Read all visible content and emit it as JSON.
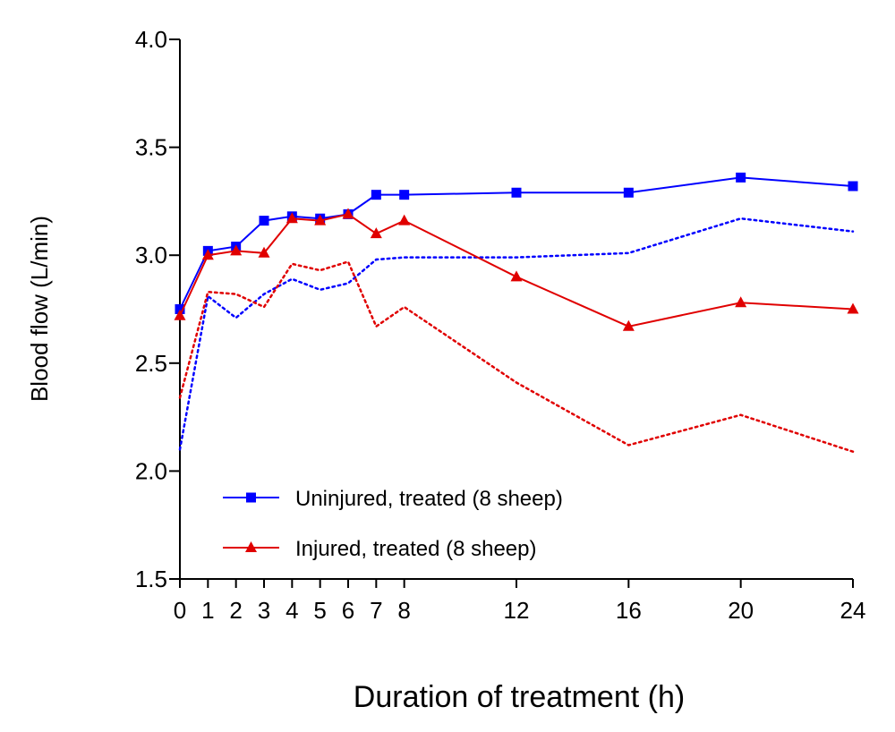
{
  "chart_data": {
    "type": "line",
    "xlabel": "Duration of treatment (h)",
    "ylabel": "Blood flow (L/min)",
    "xlim": [
      0,
      24
    ],
    "ylim": [
      1.5,
      4.0
    ],
    "x_ticks": [
      0,
      1,
      2,
      3,
      4,
      5,
      6,
      7,
      8,
      12,
      16,
      20,
      24
    ],
    "y_ticks": [
      1.5,
      2.0,
      2.5,
      3.0,
      3.5,
      4.0
    ],
    "y_tick_labels": [
      "1.5",
      "2.0",
      "2.5",
      "3.0",
      "3.5",
      "4.0"
    ],
    "grid": false,
    "legend_position": "bottom-left",
    "series": [
      {
        "name": "Uninjured, treated (8 sheep)",
        "color": "#0000ff",
        "marker": "square",
        "x": [
          0,
          1,
          2,
          3,
          4,
          5,
          6,
          7,
          8,
          12,
          16,
          20,
          24
        ],
        "values": [
          2.75,
          3.02,
          3.04,
          3.16,
          3.18,
          3.17,
          3.19,
          3.28,
          3.28,
          3.29,
          3.29,
          3.36,
          3.32
        ],
        "lower_bound": [
          2.1,
          2.81,
          2.71,
          2.82,
          2.89,
          2.84,
          2.87,
          2.98,
          2.99,
          2.99,
          3.01,
          3.17,
          3.11
        ]
      },
      {
        "name": "Injured, treated (8 sheep)",
        "color": "#e00000",
        "marker": "triangle",
        "x": [
          0,
          1,
          2,
          3,
          4,
          5,
          6,
          7,
          8,
          12,
          16,
          20,
          24
        ],
        "values": [
          2.72,
          3.0,
          3.02,
          3.01,
          3.17,
          3.16,
          3.19,
          3.1,
          3.16,
          2.9,
          2.67,
          2.78,
          2.75
        ],
        "lower_bound": [
          2.34,
          2.83,
          2.82,
          2.76,
          2.96,
          2.93,
          2.97,
          2.67,
          2.76,
          2.41,
          2.12,
          2.26,
          2.09
        ]
      }
    ]
  }
}
